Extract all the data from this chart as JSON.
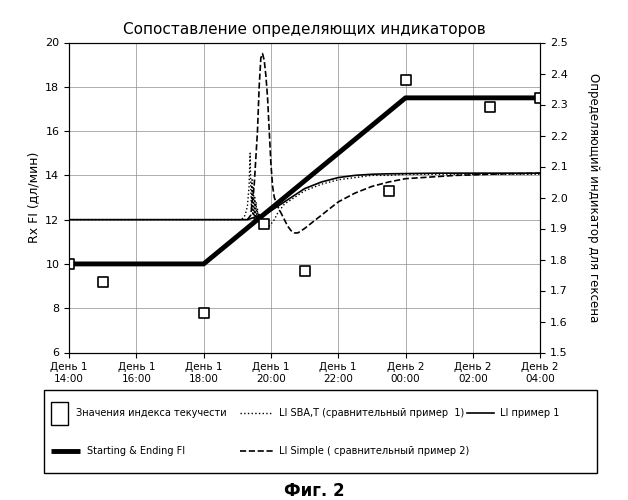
{
  "title": "Сопоставление определяющих индикаторов",
  "xlabel_ticks": [
    "День 1\n14:00",
    "День 1\n16:00",
    "День 1\n18:00",
    "День 1\n20:00",
    "День 1\n22:00",
    "День 2\n00:00",
    "День 2\n02:00",
    "День 2\n04:00"
  ],
  "x_positions": [
    0,
    2,
    4,
    6,
    8,
    10,
    12,
    14
  ],
  "ylabel_left": "Rx FI (дл/мин)",
  "ylabel_right": "Определяющий индикатор для гексена",
  "ylim_left": [
    6,
    20
  ],
  "ylim_right": [
    1.5,
    2.5
  ],
  "fig_caption": "Фиг. 2",
  "scatter_x": [
    0.0,
    1.0,
    4.0,
    5.8,
    7.0,
    9.5,
    10.0,
    12.5,
    14.0
  ],
  "scatter_y": [
    10.0,
    9.2,
    7.8,
    11.8,
    9.7,
    13.3,
    18.3,
    17.1,
    17.5
  ],
  "starting_ending_x": [
    0.0,
    4.0,
    4.0,
    10.0,
    10.0,
    14.0
  ],
  "starting_ending_y": [
    10.0,
    10.0,
    10.0,
    10.0,
    17.5,
    17.5
  ],
  "li_primer1_x": [
    0.0,
    1.0,
    2.0,
    3.0,
    4.0,
    4.5,
    5.0,
    5.3,
    5.5,
    5.7,
    5.9,
    6.1,
    6.3,
    6.5,
    6.8,
    7.0,
    7.5,
    8.0,
    8.5,
    9.0,
    9.5,
    10.0,
    10.5,
    11.0,
    11.5,
    12.0,
    12.5,
    13.0,
    13.5,
    14.0
  ],
  "li_primer1_y": [
    12.0,
    12.0,
    12.0,
    12.0,
    12.0,
    12.0,
    12.0,
    12.0,
    12.1,
    12.2,
    12.3,
    12.5,
    12.7,
    12.9,
    13.2,
    13.4,
    13.7,
    13.9,
    14.0,
    14.05,
    14.07,
    14.08,
    14.09,
    14.1,
    14.1,
    14.1,
    14.1,
    14.1,
    14.1,
    14.1
  ],
  "li_sbat_x": [
    0.0,
    1.0,
    2.0,
    3.0,
    4.0,
    4.5,
    5.0,
    5.1,
    5.2,
    5.25,
    5.3,
    5.35,
    5.38,
    5.4,
    5.42,
    5.44,
    5.46,
    5.48,
    5.5,
    5.52,
    5.54,
    5.56,
    5.58,
    5.6,
    5.62,
    5.64,
    5.66,
    5.68,
    5.7,
    5.72,
    5.74,
    5.76,
    5.78,
    5.8,
    5.85,
    5.9,
    5.95,
    6.0,
    6.1,
    6.2,
    6.3,
    6.4,
    6.5,
    6.6,
    6.7,
    6.8,
    7.0,
    7.5,
    8.0,
    8.5,
    9.0,
    9.5,
    10.0,
    10.5,
    11.0,
    11.5,
    12.0,
    12.5,
    13.0,
    13.5,
    14.0
  ],
  "li_sbat_y": [
    12.0,
    12.0,
    12.0,
    12.0,
    12.0,
    12.0,
    12.0,
    12.0,
    12.1,
    12.3,
    12.6,
    13.5,
    15.0,
    13.5,
    12.5,
    13.8,
    12.2,
    13.5,
    11.8,
    13.0,
    12.0,
    12.8,
    11.9,
    12.5,
    12.0,
    12.3,
    11.8,
    12.2,
    11.9,
    12.1,
    11.9,
    12.1,
    11.8,
    12.0,
    11.7,
    11.6,
    11.7,
    11.8,
    12.0,
    12.3,
    12.5,
    12.7,
    12.8,
    12.9,
    13.0,
    13.1,
    13.3,
    13.6,
    13.8,
    13.9,
    14.0,
    14.0,
    14.05,
    14.05,
    14.05,
    14.05,
    14.05,
    14.05,
    14.05,
    14.05,
    14.05
  ],
  "li_simple_x": [
    5.3,
    5.4,
    5.5,
    5.6,
    5.65,
    5.7,
    5.75,
    5.8,
    5.85,
    5.9,
    5.95,
    6.0,
    6.05,
    6.1,
    6.15,
    6.2,
    6.3,
    6.4,
    6.5,
    6.6,
    6.7,
    6.8,
    7.0,
    7.5,
    8.0,
    8.5,
    9.0,
    9.5,
    10.0,
    10.5,
    11.0,
    11.5,
    12.0,
    12.5,
    13.0,
    13.5,
    14.0
  ],
  "li_simple_y": [
    12.0,
    12.2,
    13.5,
    16.0,
    18.0,
    19.3,
    19.5,
    19.2,
    18.5,
    17.5,
    16.0,
    14.5,
    13.5,
    13.0,
    12.8,
    12.6,
    12.3,
    12.0,
    11.7,
    11.5,
    11.4,
    11.4,
    11.6,
    12.2,
    12.8,
    13.2,
    13.5,
    13.7,
    13.85,
    13.9,
    13.95,
    14.0,
    14.02,
    14.05,
    14.07,
    14.08,
    14.1
  ],
  "bg_color": "#ffffff",
  "grid_color": "#888888"
}
